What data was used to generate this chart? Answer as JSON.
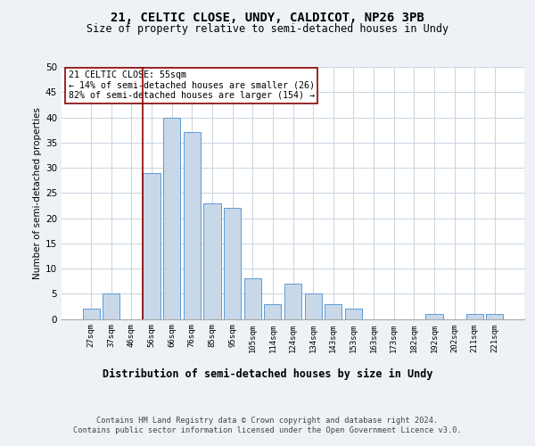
{
  "title1": "21, CELTIC CLOSE, UNDY, CALDICOT, NP26 3PB",
  "title2": "Size of property relative to semi-detached houses in Undy",
  "xlabel": "Distribution of semi-detached houses by size in Undy",
  "ylabel": "Number of semi-detached properties",
  "categories": [
    "27sqm",
    "37sqm",
    "46sqm",
    "56sqm",
    "66sqm",
    "76sqm",
    "85sqm",
    "95sqm",
    "105sqm",
    "114sqm",
    "124sqm",
    "134sqm",
    "143sqm",
    "153sqm",
    "163sqm",
    "173sqm",
    "182sqm",
    "192sqm",
    "202sqm",
    "211sqm",
    "221sqm"
  ],
  "values": [
    2,
    5,
    0,
    29,
    40,
    37,
    23,
    22,
    8,
    3,
    7,
    5,
    3,
    2,
    0,
    0,
    0,
    1,
    0,
    1,
    1
  ],
  "bar_color": "#c8d8e8",
  "bar_edge_color": "#5b9bd5",
  "highlight_index": 3,
  "highlight_line_color": "#8b0000",
  "annotation_text": "21 CELTIC CLOSE: 55sqm\n← 14% of semi-detached houses are smaller (26)\n82% of semi-detached houses are larger (154) →",
  "annotation_box_color": "#ffffff",
  "annotation_box_edge_color": "#8b0000",
  "ylim": [
    0,
    50
  ],
  "yticks": [
    0,
    5,
    10,
    15,
    20,
    25,
    30,
    35,
    40,
    45,
    50
  ],
  "footer": "Contains HM Land Registry data © Crown copyright and database right 2024.\nContains public sector information licensed under the Open Government Licence v3.0.",
  "bg_color": "#eef2f7",
  "plot_bg_color": "#ffffff",
  "grid_color": "#c8d4e0"
}
